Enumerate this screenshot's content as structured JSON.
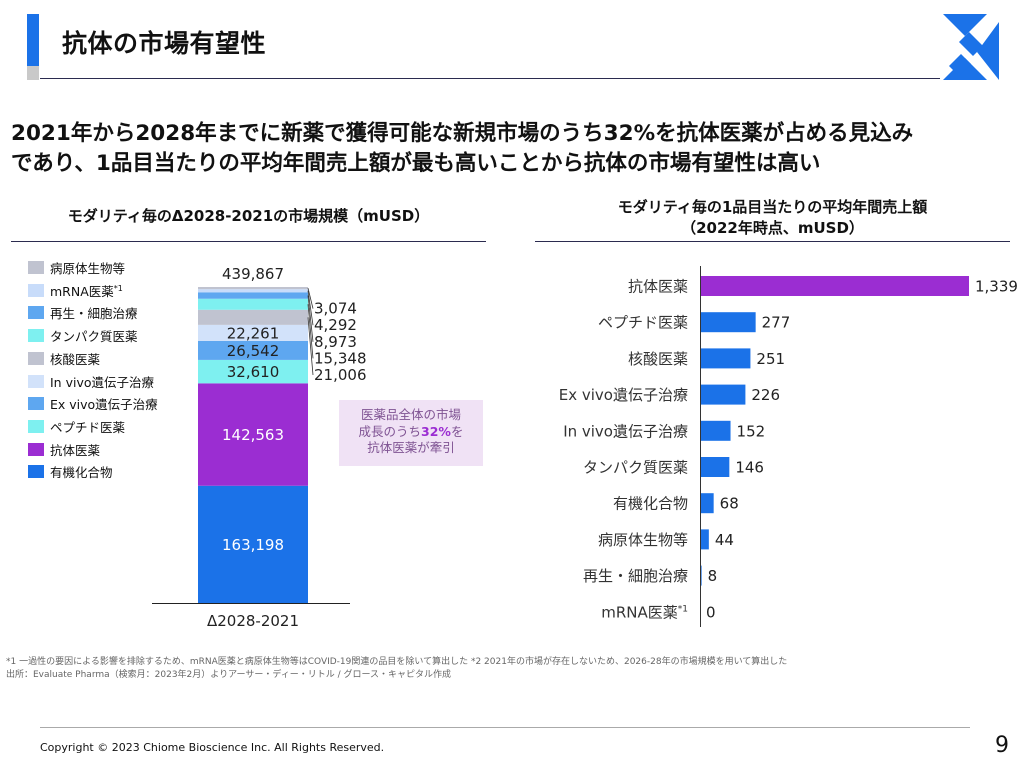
{
  "header": {
    "title": "抗体の市場有望性",
    "headline_line1": "2021年から2028年までに新薬で獲得可能な新規市場のうち32%を抗体医薬が占める見込み",
    "headline_line2": "であり、1品目当たりの平均年間売上額が最も高いことから抗体の市場有望性は高い"
  },
  "left_section": {
    "title": "モダリティ毎のΔ2028-2021の市場規模（mUSD）",
    "callout_line1": "医薬品全体の市場",
    "callout_line2_prefix": "成長のうち",
    "callout_highlight": "32%",
    "callout_line2_suffix": "を",
    "callout_line3": "抗体医薬が牽引"
  },
  "right_section": {
    "title_line1": "モダリティ毎の1品目当たりの平均年間売上額",
    "title_line2": "（2022年時点、mUSD）"
  },
  "legend": [
    {
      "label": "病原体生物等",
      "sup": "",
      "color": "#c0c3d0"
    },
    {
      "label": "mRNA医薬",
      "sup": "*1",
      "color": "#c8dcfa"
    },
    {
      "label": "再生・細胞治療",
      "sup": "",
      "color": "#5ea7f0"
    },
    {
      "label": "タンパク質医薬",
      "sup": "",
      "color": "#7ef0f0"
    },
    {
      "label": "核酸医薬",
      "sup": "",
      "color": "#c0c3d0"
    },
    {
      "label": "In vivo遺伝子治療",
      "sup": "",
      "color": "#d2e2fa"
    },
    {
      "label": "Ex vivo遺伝子治療",
      "sup": "",
      "color": "#5ea7f0"
    },
    {
      "label": "ペプチド医薬",
      "sup": "",
      "color": "#7ef0f0"
    },
    {
      "label": "抗体医薬",
      "sup": "",
      "color": "#9b2dd2"
    },
    {
      "label": "有機化合物",
      "sup": "",
      "color": "#1b72e8"
    }
  ],
  "chart_data": [
    {
      "type": "bar",
      "stacked": true,
      "title": "モダリティ毎のΔ2028-2021の市場規模（mUSD）",
      "categories": [
        "Δ2028-2021"
      ],
      "total": 439867,
      "total_label": "439,867",
      "series": [
        {
          "name": "有機化合物",
          "value": 163198,
          "label": "163,198",
          "color": "#1b72e8",
          "label_pos": "inside",
          "label_color": "#ffffff"
        },
        {
          "name": "抗体医薬",
          "value": 142563,
          "label": "142,563",
          "color": "#9b2dd2",
          "label_pos": "inside",
          "label_color": "#ffffff"
        },
        {
          "name": "ペプチド医薬",
          "value": 32610,
          "label": "32,610",
          "color": "#7ef0f0",
          "label_pos": "inside",
          "label_color": "#222222"
        },
        {
          "name": "Ex vivo遺伝子治療",
          "value": 26542,
          "label": "26,542",
          "color": "#5ea7f0",
          "label_pos": "inside",
          "label_color": "#222222"
        },
        {
          "name": "In vivo遺伝子治療",
          "value": 22261,
          "label": "22,261",
          "color": "#d2e2fa",
          "label_pos": "inside",
          "label_color": "#222222"
        },
        {
          "name": "核酸医薬",
          "value": 21006,
          "label": "21,006",
          "color": "#c0c3d0",
          "label_pos": "outside",
          "label_color": "#222222"
        },
        {
          "name": "タンパク質医薬",
          "value": 15348,
          "label": "15,348",
          "color": "#7ef0f0",
          "label_pos": "outside",
          "label_color": "#222222"
        },
        {
          "name": "再生・細胞治療",
          "value": 8973,
          "label": "8,973",
          "color": "#5ea7f0",
          "label_pos": "outside",
          "label_color": "#222222"
        },
        {
          "name": "mRNA医薬",
          "value": 4292,
          "label": "4,292",
          "color": "#c8dcfa",
          "label_pos": "outside",
          "label_color": "#222222"
        },
        {
          "name": "病原体生物等",
          "value": 3074,
          "label": "3,074",
          "color": "#c0c3d0",
          "label_pos": "outside",
          "label_color": "#222222"
        }
      ]
    },
    {
      "type": "bar",
      "orientation": "horizontal",
      "title": "モダリティ毎の1品目当たりの平均年間売上額（2022年時点、mUSD）",
      "categories": [
        "抗体医薬",
        "ペプチド医薬",
        "核酸医薬",
        "Ex vivo遺伝子治療",
        "In vivo遺伝子治療",
        "タンパク質医薬",
        "有機化合物",
        "病原体生物等",
        "再生・細胞治療",
        "mRNA医薬"
      ],
      "category_sups": [
        "",
        "",
        "",
        "",
        "",
        "",
        "",
        "",
        "",
        "*1"
      ],
      "values": [
        1339,
        277,
        251,
        226,
        152,
        146,
        68,
        44,
        8,
        0
      ],
      "value_labels": [
        "1,339",
        "277",
        "251",
        "226",
        "152",
        "146",
        "68",
        "44",
        "8",
        "0"
      ],
      "colors": [
        "#9b2dd2",
        "#1b72e8",
        "#1b72e8",
        "#1b72e8",
        "#1b72e8",
        "#1b72e8",
        "#1b72e8",
        "#1b72e8",
        "#1b72e8",
        "#1b72e8"
      ],
      "xlim": [
        0,
        1339
      ]
    }
  ],
  "footnote": {
    "line1": "*1 一過性の要因による影響を排除するため、mRNA医薬と病原体生物等はCOVID-19関連の品目を除いて算出した *2 2021年の市場が存在しないため、2026-28年の市場規模を用いて算出した",
    "line2": "出所：Evaluate Pharma（検索月：2023年2月）よりアーサー・ディー・リトル / グロース・キャピタル作成"
  },
  "footer": {
    "copyright": "Copyright © 2023 Chiome Bioscience Inc. All Rights Reserved.",
    "page_number": "9"
  }
}
